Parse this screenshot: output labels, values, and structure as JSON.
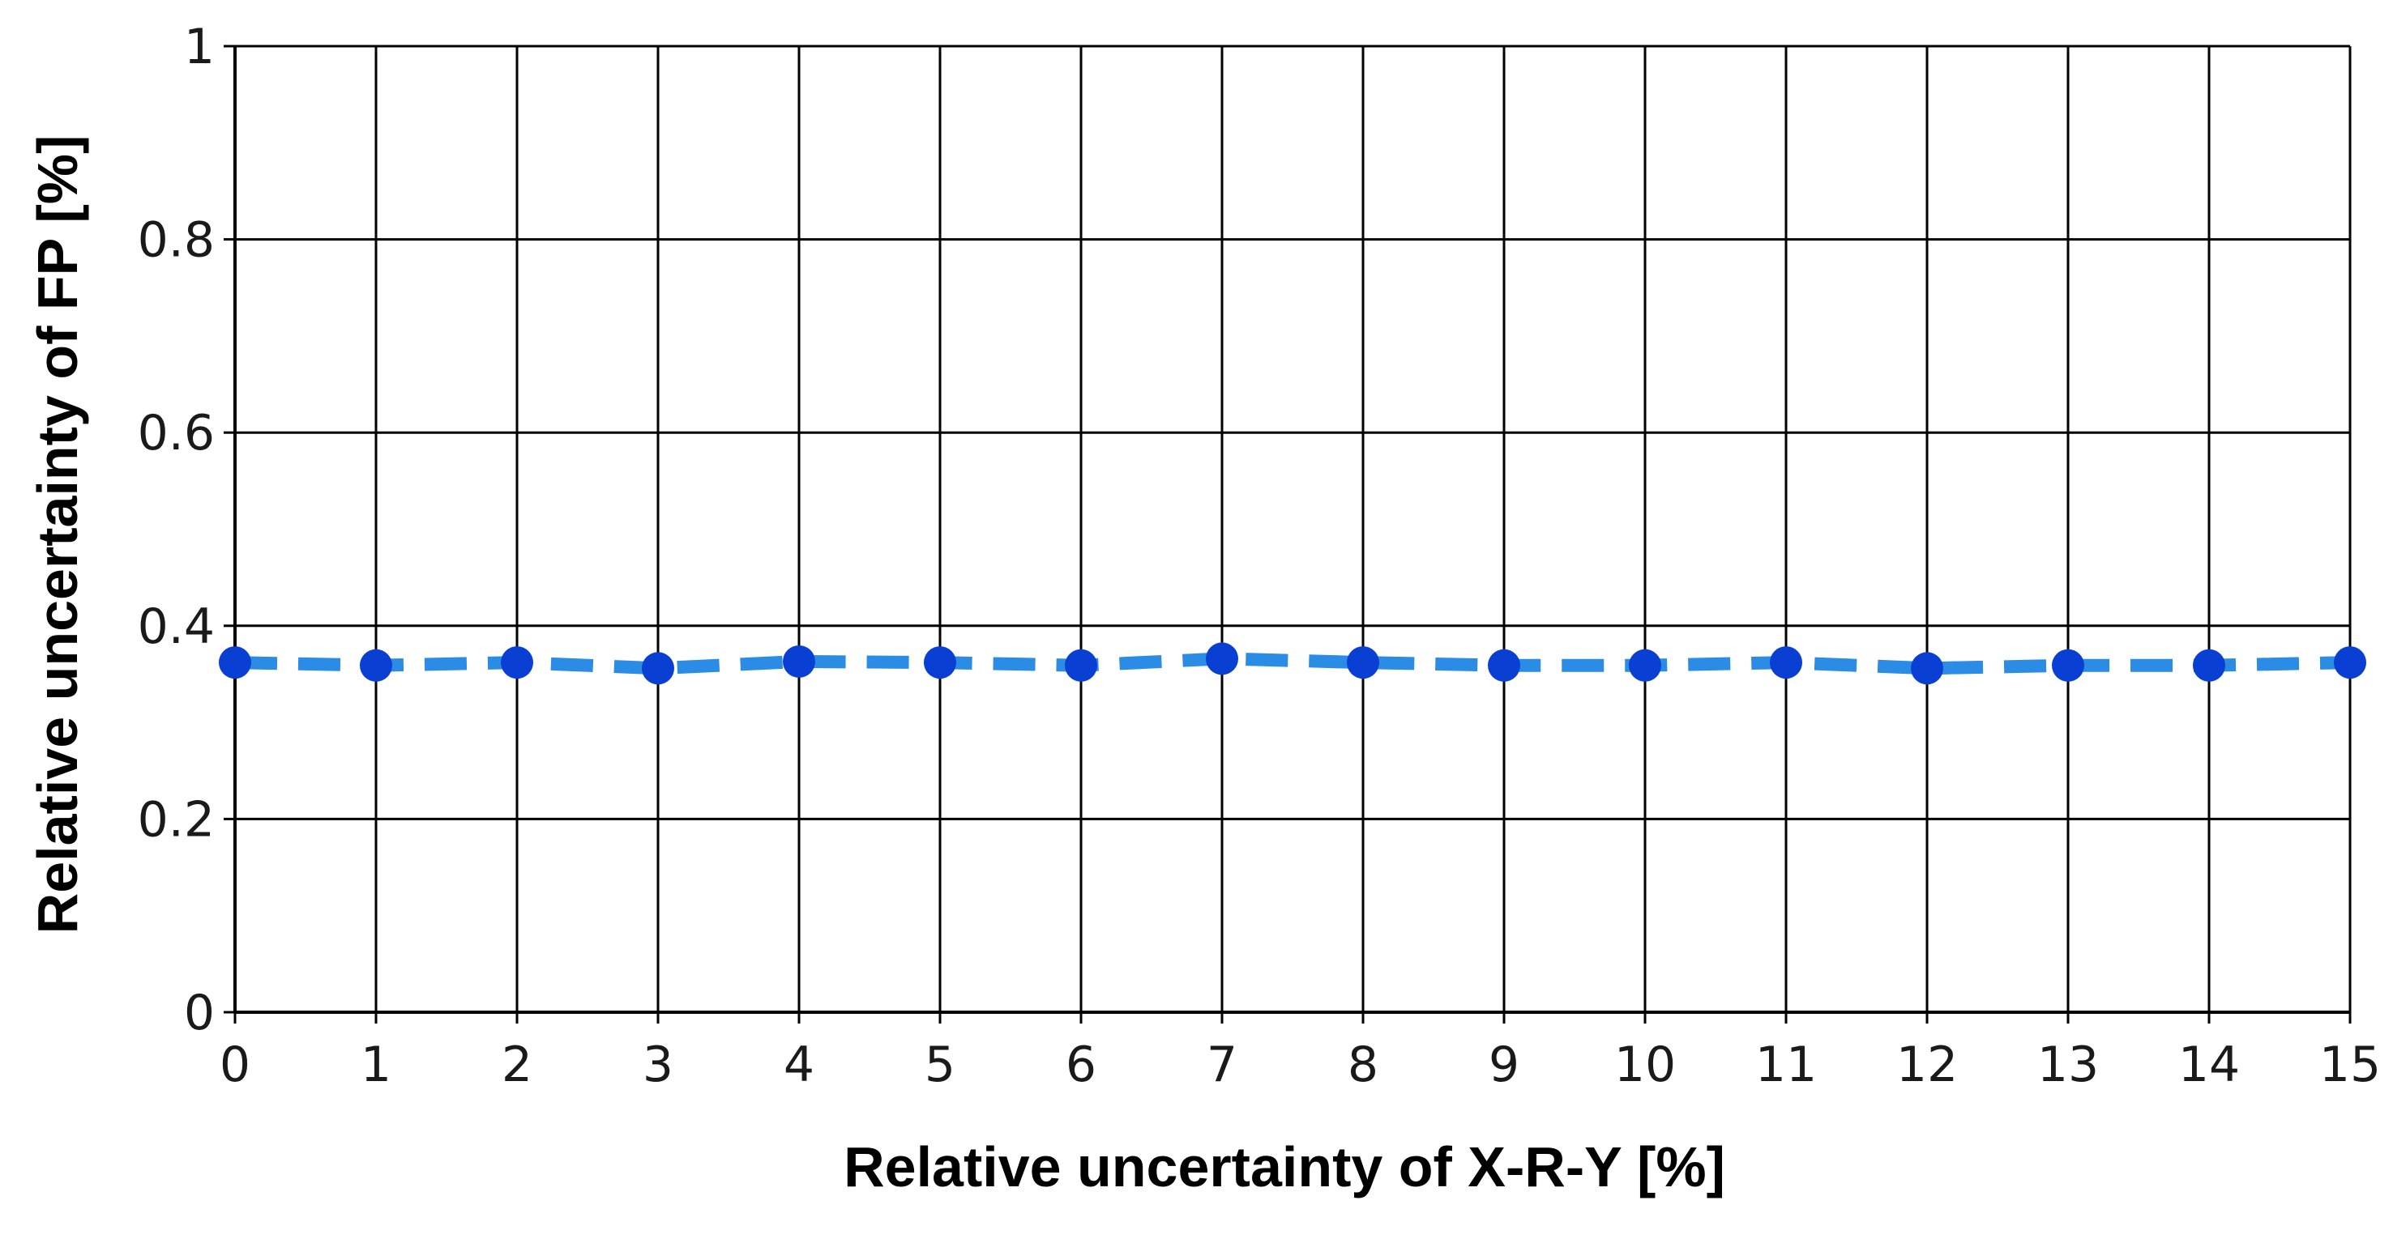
{
  "chart_data": {
    "type": "line",
    "title": "",
    "xlabel": "Relative uncertainty of X-R-Y [%]",
    "ylabel": "Relative uncertainty of FP  [%]",
    "xlim": [
      0,
      15
    ],
    "ylim": [
      0,
      1
    ],
    "grid": true,
    "x_ticks": [
      "0",
      "1",
      "2",
      "3",
      "4",
      "5",
      "6",
      "7",
      "8",
      "9",
      "10",
      "11",
      "12",
      "13",
      "14",
      "15"
    ],
    "y_ticks": [
      "0",
      "0.2",
      "0.4",
      "0.6",
      "0.8",
      "1"
    ],
    "series": [
      {
        "x": [
          0,
          1,
          2,
          3,
          4,
          5,
          6,
          7,
          8,
          9,
          10,
          11,
          12,
          13,
          14,
          15
        ],
        "y": [
          0.362,
          0.359,
          0.362,
          0.356,
          0.363,
          0.362,
          0.359,
          0.366,
          0.362,
          0.359,
          0.359,
          0.362,
          0.356,
          0.359,
          0.359,
          0.362
        ],
        "line_color": "#2b8ce6",
        "marker_color": "#0a3fd4",
        "line_style": "dashed"
      }
    ]
  }
}
